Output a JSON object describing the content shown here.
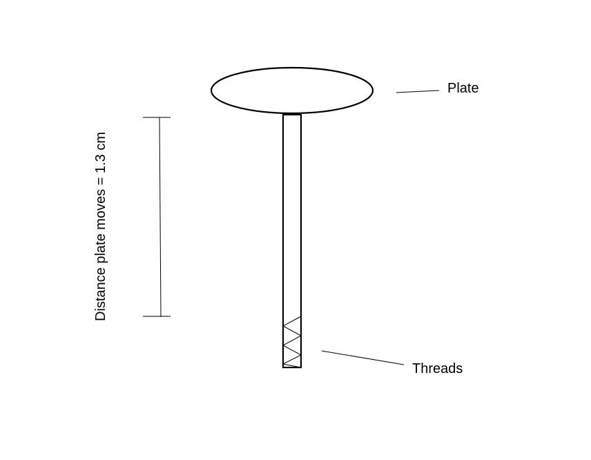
{
  "diagram": {
    "labels": {
      "plate": "Plate",
      "threads": "Threads",
      "distance": "Distance plate moves = 1.3 cm"
    },
    "colors": {
      "stroke": "#000000",
      "background": "#ffffff"
    }
  }
}
